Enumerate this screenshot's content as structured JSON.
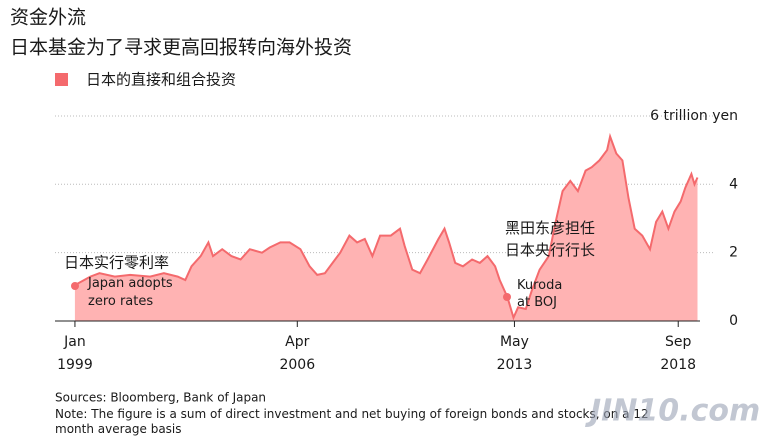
{
  "chart_data": {
    "type": "area",
    "title": "资金外流",
    "subtitle": "日本基金为了寻求更高回报转向海外投资",
    "series": [
      {
        "name": "日本的直接和组合投资",
        "color": "#f46a6d",
        "fill": "#ffb3b3",
        "x": [
          1999.0,
          1999.5,
          1999.8,
          2000.3,
          2000.8,
          2001.45,
          2001.9,
          2002.35,
          2002.6,
          2002.8,
          2003.1,
          2003.35,
          2003.5,
          2003.8,
          2004.1,
          2004.4,
          2004.7,
          2005.1,
          2005.35,
          2005.7,
          2006.0,
          2006.35,
          2006.65,
          2006.9,
          2007.15,
          2007.4,
          2007.65,
          2007.95,
          2008.2,
          2008.45,
          2008.7,
          2008.95,
          2009.3,
          2009.6,
          2009.75,
          2010.0,
          2010.25,
          2010.5,
          2010.85,
          2011.05,
          2011.2,
          2011.4,
          2011.65,
          2011.95,
          2012.2,
          2012.45,
          2012.7,
          2012.85,
          2013.1,
          2013.3,
          2013.45,
          2013.7,
          2013.9,
          2014.15,
          2014.45,
          2014.65,
          2014.9,
          2015.15,
          2015.4,
          2015.65,
          2015.85,
          2016.1,
          2016.35,
          2016.45,
          2016.65,
          2016.85,
          2017.05,
          2017.25,
          2017.5,
          2017.75,
          2017.95,
          2018.15,
          2018.35,
          2018.55,
          2018.75,
          2018.9,
          2019.1,
          2019.2,
          2019.3
        ],
        "values": [
          1.05,
          1.3,
          1.4,
          1.3,
          1.35,
          1.3,
          1.4,
          1.3,
          1.2,
          1.6,
          1.9,
          2.3,
          1.9,
          2.1,
          1.9,
          1.8,
          2.1,
          2.0,
          2.15,
          2.3,
          2.3,
          2.1,
          1.6,
          1.35,
          1.4,
          1.7,
          2.0,
          2.5,
          2.3,
          2.4,
          1.9,
          2.5,
          2.5,
          2.7,
          2.2,
          1.5,
          1.4,
          1.8,
          2.4,
          2.7,
          2.3,
          1.7,
          1.6,
          1.8,
          1.7,
          1.9,
          1.6,
          1.2,
          0.7,
          0.1,
          0.4,
          0.35,
          0.9,
          1.5,
          1.9,
          2.8,
          3.8,
          4.1,
          3.8,
          4.4,
          4.5,
          4.7,
          5.0,
          5.4,
          4.9,
          4.7,
          3.6,
          2.7,
          2.5,
          2.1,
          2.9,
          3.2,
          2.7,
          3.2,
          3.5,
          3.9,
          4.3,
          4.0,
          4.2
        ]
      }
    ],
    "xlim": [
      1998.35,
      2019.38
    ],
    "xticks": [
      {
        "value": 1999.0,
        "label": "Jan 1999"
      },
      {
        "value": 2006.25,
        "label": "Apr 2006"
      },
      {
        "value": 2013.33,
        "label": "May 2013"
      },
      {
        "value": 2018.67,
        "label": "Sep 2018"
      }
    ],
    "ylim": [
      0,
      6.3
    ],
    "yticks": [
      0,
      2,
      4,
      {
        "value": 6,
        "label": "6 trillion yen"
      }
    ],
    "grid": true,
    "annotations": [
      "日本实行零利率",
      "Japan adopts zero rates",
      "黑田东彦担任 日本央行行长",
      "Kuroda at BOJ"
    ],
    "source": "Sources: Bloomberg, Bank of Japan",
    "note": "Note: The figure is a sum of direct investment and net buying of foreign bonds and stocks, on a 12 month average basis",
    "watermark": "JIN10.com"
  }
}
